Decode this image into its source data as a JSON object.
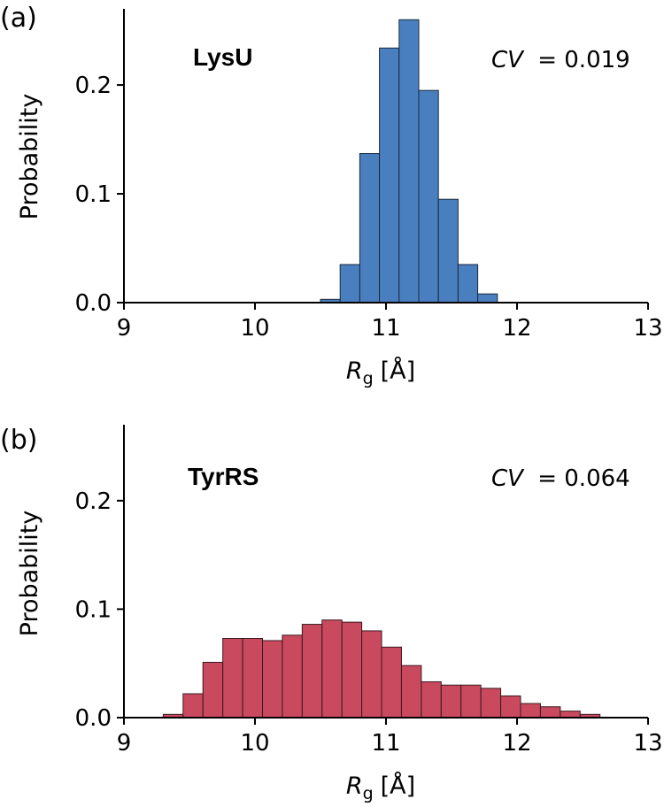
{
  "chart_data": [
    {
      "type": "bar",
      "panel_label": "(a)",
      "protein": "LysU",
      "cv_symbol": "CV",
      "cv_value": "= 0.019",
      "ylabel": "Probability",
      "xlabel_symbol": "R",
      "xlabel_sub": "g",
      "xlabel_unit": "[Å]",
      "xlim": [
        9,
        13
      ],
      "ylim": [
        0,
        0.27
      ],
      "xticks": [
        "9",
        "10",
        "11",
        "12",
        "13"
      ],
      "yticks": [
        "0.0",
        "0.1",
        "0.2"
      ],
      "bin_width": 0.15,
      "bin_edges_start": [
        10.5,
        10.65,
        10.8,
        10.95,
        11.1,
        11.25,
        11.4,
        11.55,
        11.7
      ],
      "values": [
        0.003,
        0.035,
        0.137,
        0.234,
        0.26,
        0.195,
        0.095,
        0.035,
        0.008
      ],
      "color": "#4a7fbf",
      "edge_color": "#1a2a3a"
    },
    {
      "type": "bar",
      "panel_label": "(b)",
      "protein": "TyrRS",
      "cv_symbol": "CV",
      "cv_value": "= 0.064",
      "ylabel": "Probability",
      "xlabel_symbol": "R",
      "xlabel_sub": "g",
      "xlabel_unit": "[Å]",
      "xlim": [
        9,
        13
      ],
      "ylim": [
        0,
        0.27
      ],
      "xticks": [
        "9",
        "10",
        "11",
        "12",
        "13"
      ],
      "yticks": [
        "0.0",
        "0.1",
        "0.2"
      ],
      "bin_width": 0.1515,
      "bin_edges_start": [
        9.3,
        9.4515,
        9.603,
        9.7545,
        9.906,
        10.0575,
        10.209,
        10.3605,
        10.512,
        10.6635,
        10.815,
        10.9665,
        11.118,
        11.2695,
        11.421,
        11.5725,
        11.724,
        11.8755,
        12.027,
        12.1785,
        12.33,
        12.4815
      ],
      "values": [
        0.003,
        0.022,
        0.051,
        0.073,
        0.073,
        0.071,
        0.076,
        0.086,
        0.09,
        0.088,
        0.08,
        0.065,
        0.048,
        0.033,
        0.03,
        0.03,
        0.027,
        0.02,
        0.013,
        0.01,
        0.006,
        0.003
      ],
      "color": "#c94a5e",
      "edge_color": "#3a1a20"
    }
  ]
}
